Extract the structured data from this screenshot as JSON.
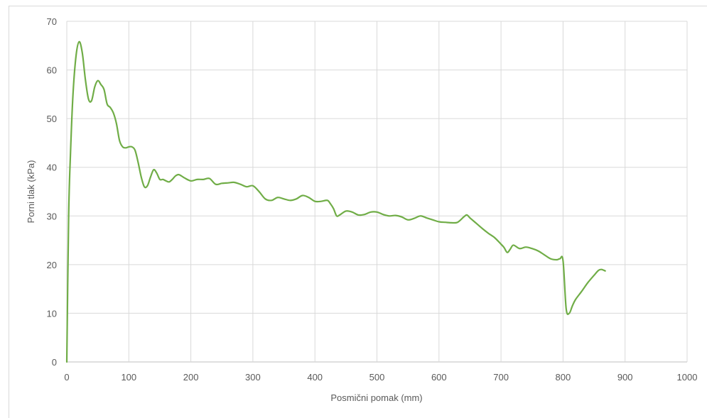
{
  "chart_data": {
    "type": "line",
    "title": "",
    "xlabel": "Posmični pomak (mm)",
    "ylabel": "Porni tlak (kPa)",
    "xlim": [
      0,
      1000
    ],
    "ylim": [
      0,
      70
    ],
    "xticks": [
      0,
      100,
      200,
      300,
      400,
      500,
      600,
      700,
      800,
      900,
      1000
    ],
    "yticks": [
      0,
      10,
      20,
      30,
      40,
      50,
      60,
      70
    ],
    "grid": true,
    "legend": "none",
    "series": [
      {
        "color": "#70ad47",
        "x": [
          0,
          3,
          6,
          10,
          15,
          20,
          25,
          30,
          35,
          40,
          45,
          50,
          55,
          60,
          65,
          70,
          75,
          80,
          85,
          90,
          95,
          100,
          105,
          110,
          115,
          120,
          125,
          130,
          135,
          140,
          145,
          150,
          155,
          160,
          165,
          170,
          175,
          180,
          185,
          190,
          200,
          210,
          220,
          230,
          240,
          250,
          260,
          270,
          280,
          290,
          300,
          310,
          320,
          330,
          340,
          350,
          360,
          370,
          380,
          390,
          400,
          410,
          420,
          425,
          430,
          435,
          440,
          450,
          460,
          470,
          480,
          490,
          500,
          510,
          520,
          530,
          540,
          550,
          560,
          570,
          580,
          590,
          600,
          610,
          620,
          630,
          640,
          645,
          650,
          660,
          670,
          680,
          690,
          700,
          705,
          710,
          715,
          720,
          730,
          740,
          750,
          760,
          770,
          780,
          790,
          795,
          800,
          805,
          810,
          815,
          820,
          830,
          840,
          850,
          857,
          862,
          868
        ],
        "y": [
          0,
          30,
          43,
          55,
          63,
          65.8,
          63.5,
          58,
          54,
          53.7,
          56.5,
          57.8,
          57,
          56,
          53,
          52.3,
          51.2,
          49,
          45.5,
          44.2,
          44,
          44.2,
          44.2,
          43.5,
          41,
          38,
          36,
          36.2,
          38,
          39.5,
          38.8,
          37.5,
          37.5,
          37.2,
          37,
          37.5,
          38.2,
          38.5,
          38.2,
          37.8,
          37.2,
          37.5,
          37.5,
          37.7,
          36.5,
          36.7,
          36.8,
          36.9,
          36.5,
          36,
          36.2,
          35,
          33.5,
          33.2,
          33.8,
          33.5,
          33.2,
          33.5,
          34.2,
          33.8,
          33,
          33,
          33.2,
          32.5,
          31.5,
          30,
          30.2,
          31,
          30.8,
          30.2,
          30.3,
          30.8,
          30.8,
          30.3,
          30,
          30.1,
          29.8,
          29.2,
          29.5,
          30,
          29.6,
          29.2,
          28.8,
          28.7,
          28.6,
          28.7,
          29.8,
          30.2,
          29.6,
          28.5,
          27.4,
          26.4,
          25.5,
          24.2,
          23.5,
          22.5,
          23.2,
          24,
          23.3,
          23.6,
          23.3,
          22.8,
          22,
          21.2,
          21,
          21.2,
          20.8,
          11,
          10,
          11.5,
          12.8,
          14.5,
          16.3,
          17.8,
          18.8,
          19,
          18.7
        ]
      }
    ]
  }
}
